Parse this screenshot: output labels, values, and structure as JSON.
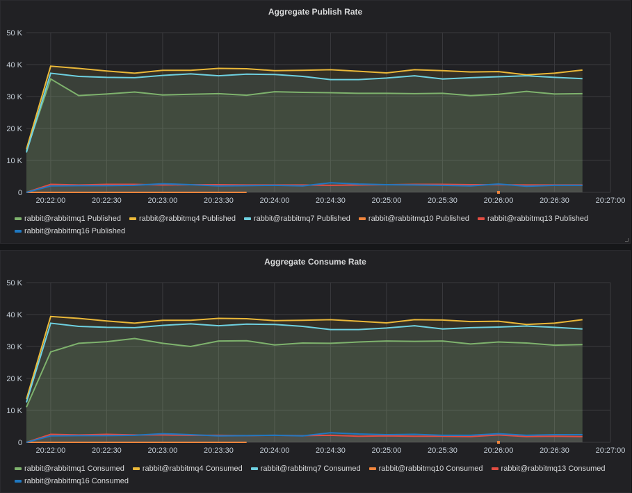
{
  "chart_data": [
    {
      "type": "line",
      "title": "Aggregate Publish Rate",
      "ylim": [
        0,
        50000
      ],
      "y_ticks": [
        "0",
        "10 K",
        "20 K",
        "30 K",
        "40 K",
        "50 K"
      ],
      "x_ticks": [
        "20:22:00",
        "20:22:30",
        "20:23:00",
        "20:23:30",
        "20:24:00",
        "20:24:30",
        "20:25:00",
        "20:25:30",
        "20:26:00",
        "20:26:30",
        "20:27:00"
      ],
      "x_range": [
        "20:21:47",
        "20:27:00"
      ],
      "grid": true,
      "fill": true,
      "legend_position": "bottom",
      "x": [
        "20:21:47",
        "20:22:00",
        "20:22:15",
        "20:22:30",
        "20:22:45",
        "20:23:00",
        "20:23:15",
        "20:23:30",
        "20:23:45",
        "20:24:00",
        "20:24:15",
        "20:24:30",
        "20:24:45",
        "20:25:00",
        "20:25:15",
        "20:25:30",
        "20:25:45",
        "20:26:00",
        "20:26:15",
        "20:26:30",
        "20:26:45"
      ],
      "series": [
        {
          "name": "rabbit@rabbitmq1 Published",
          "color": "#7eb26d",
          "values": [
            13000,
            35500,
            30300,
            30800,
            31400,
            30500,
            30700,
            30900,
            30400,
            31500,
            31300,
            31200,
            31000,
            31000,
            30900,
            31000,
            30300,
            30700,
            31600,
            30800,
            30900
          ]
        },
        {
          "name": "rabbit@rabbitmq4 Published",
          "color": "#eab839",
          "values": [
            13500,
            39500,
            38800,
            38000,
            37300,
            38200,
            38200,
            38800,
            38700,
            38100,
            38200,
            38400,
            37900,
            37400,
            38400,
            38100,
            37700,
            37800,
            36800,
            37300,
            38300
          ]
        },
        {
          "name": "rabbit@rabbitmq7 Published",
          "color": "#6ed0e0",
          "values": [
            12500,
            37300,
            36300,
            36000,
            35900,
            36600,
            37100,
            36500,
            37000,
            36900,
            36300,
            35300,
            35300,
            35800,
            36500,
            35500,
            35900,
            36200,
            36500,
            36000,
            35600
          ]
        },
        {
          "name": "rabbit@rabbitmq10 Published",
          "color": "#ef843c",
          "values": [
            0,
            0,
            0,
            0,
            0,
            0,
            0,
            0,
            0,
            null,
            null,
            null,
            null,
            null,
            null,
            null,
            null,
            0,
            null,
            null,
            null
          ]
        },
        {
          "name": "rabbit@rabbitmq13 Published",
          "color": "#e24d42",
          "values": [
            0,
            2500,
            2300,
            2500,
            2500,
            2300,
            2400,
            2400,
            2300,
            2300,
            2300,
            2200,
            2300,
            2400,
            2500,
            2500,
            2400,
            2400,
            2300,
            2300,
            2300
          ]
        },
        {
          "name": "rabbit@rabbitmq16 Published",
          "color": "#1f78c1",
          "values": [
            0,
            2000,
            2100,
            2100,
            2200,
            2700,
            2400,
            2000,
            2100,
            2200,
            2000,
            3000,
            2600,
            2400,
            2300,
            2200,
            2000,
            2600,
            1900,
            2200,
            2200
          ]
        }
      ]
    },
    {
      "type": "line",
      "title": "Aggregate Consume Rate",
      "ylim": [
        0,
        50000
      ],
      "y_ticks": [
        "0",
        "10 K",
        "20 K",
        "30 K",
        "40 K",
        "50 K"
      ],
      "x_ticks": [
        "20:22:00",
        "20:22:30",
        "20:23:00",
        "20:23:30",
        "20:24:00",
        "20:24:30",
        "20:25:00",
        "20:25:30",
        "20:26:00",
        "20:26:30",
        "20:27:00"
      ],
      "x_range": [
        "20:21:47",
        "20:27:00"
      ],
      "grid": true,
      "fill": true,
      "legend_position": "bottom",
      "x": [
        "20:21:47",
        "20:22:00",
        "20:22:15",
        "20:22:30",
        "20:22:45",
        "20:23:00",
        "20:23:15",
        "20:23:30",
        "20:23:45",
        "20:24:00",
        "20:24:15",
        "20:24:30",
        "20:24:45",
        "20:25:00",
        "20:25:15",
        "20:25:30",
        "20:25:45",
        "20:26:00",
        "20:26:15",
        "20:26:30",
        "20:26:45"
      ],
      "series": [
        {
          "name": "rabbit@rabbitmq1 Consumed",
          "color": "#7eb26d",
          "values": [
            11000,
            28300,
            31000,
            31500,
            32500,
            31000,
            30000,
            31700,
            31800,
            30500,
            31100,
            31000,
            31400,
            31700,
            31600,
            31700,
            30800,
            31400,
            31100,
            30400,
            30600
          ]
        },
        {
          "name": "rabbit@rabbitmq4 Consumed",
          "color": "#eab839",
          "values": [
            13500,
            39400,
            38800,
            38000,
            37300,
            38200,
            38200,
            38800,
            38700,
            38100,
            38200,
            38400,
            37900,
            37400,
            38400,
            38300,
            37800,
            37900,
            36900,
            37300,
            38400
          ]
        },
        {
          "name": "rabbit@rabbitmq7 Consumed",
          "color": "#6ed0e0",
          "values": [
            12500,
            37300,
            36300,
            36000,
            35900,
            36600,
            37100,
            36500,
            37000,
            36900,
            36300,
            35300,
            35300,
            35800,
            36500,
            35500,
            35900,
            36100,
            36400,
            36000,
            35500
          ]
        },
        {
          "name": "rabbit@rabbitmq10 Consumed",
          "color": "#ef843c",
          "values": [
            0,
            0,
            0,
            0,
            0,
            0,
            0,
            0,
            0,
            null,
            null,
            null,
            null,
            null,
            null,
            null,
            null,
            0,
            null,
            null,
            null
          ]
        },
        {
          "name": "rabbit@rabbitmq13 Consumed",
          "color": "#e24d42",
          "values": [
            0,
            2500,
            2300,
            2500,
            2300,
            2300,
            2200,
            2200,
            2100,
            2200,
            2100,
            2200,
            1900,
            2000,
            1900,
            1900,
            1800,
            2300,
            1800,
            1900,
            1800
          ]
        },
        {
          "name": "rabbit@rabbitmq16 Consumed",
          "color": "#1f78c1",
          "values": [
            0,
            2000,
            2100,
            2100,
            2200,
            2700,
            2400,
            2000,
            2100,
            2200,
            2000,
            3000,
            2600,
            2400,
            2500,
            2200,
            2200,
            2700,
            2200,
            2400,
            2400
          ]
        }
      ]
    }
  ]
}
